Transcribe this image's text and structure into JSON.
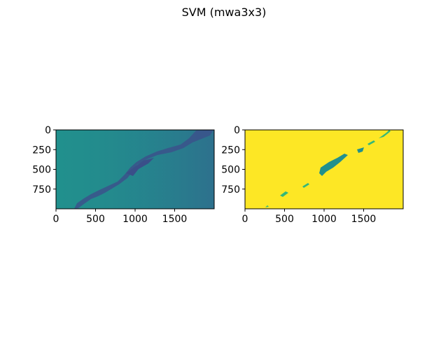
{
  "figure": {
    "title": "SVM (mwa3x3)"
  },
  "colors": {
    "viridis_teal": "#21908d",
    "viridis_blue": "#2f6e8e",
    "viridis_dark": "#3b528b",
    "viridis_yellow": "#fde725",
    "viridis_green": "#35b779",
    "axis": "#000000"
  },
  "chart_data": [
    {
      "type": "heatmap",
      "title": "",
      "xlabel": "",
      "ylabel": "",
      "xlim": [
        0,
        2000
      ],
      "ylim": [
        1000,
        0
      ],
      "xticks": [
        0,
        500,
        1000,
        1500
      ],
      "yticks": [
        0,
        250,
        500,
        750
      ],
      "colormap": "viridis",
      "description_values": "continuous image; mostly teal background with a darker diagonal band from upper-right to lower-left"
    },
    {
      "type": "heatmap",
      "title": "",
      "xlabel": "",
      "ylabel": "",
      "xlim": [
        0,
        2000
      ],
      "ylim": [
        1000,
        0
      ],
      "xticks": [
        0,
        500,
        1000,
        1500
      ],
      "yticks": [
        0,
        250,
        500,
        750
      ],
      "colormap": "viridis",
      "classes": [
        0,
        1
      ],
      "description_values": "binary classification; yellow (class 1) background with teal (class 0) pixels along the diagonal feature"
    }
  ]
}
